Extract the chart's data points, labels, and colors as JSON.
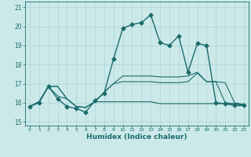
{
  "xlabel": "Humidex (Indice chaleur)",
  "ylabel": "",
  "xlim": [
    -0.5,
    23.5
  ],
  "ylim": [
    14.8,
    21.3
  ],
  "yticks": [
    15,
    16,
    17,
    18,
    19,
    20,
    21
  ],
  "xticks": [
    0,
    1,
    2,
    3,
    4,
    5,
    6,
    7,
    8,
    9,
    10,
    11,
    12,
    13,
    14,
    15,
    16,
    17,
    18,
    19,
    20,
    21,
    22,
    23
  ],
  "background_color": "#cce9e9",
  "grid_color": "#aad4d4",
  "line_color": "#1a6b6b",
  "lines": [
    {
      "x": [
        0,
        1,
        2,
        3,
        4,
        5,
        6,
        7,
        8,
        9,
        10,
        11,
        12,
        13,
        14,
        15,
        16,
        17,
        18,
        19,
        20,
        21,
        22,
        23
      ],
      "y": [
        15.8,
        16.0,
        16.85,
        16.2,
        15.8,
        15.7,
        15.5,
        16.1,
        16.5,
        18.3,
        19.9,
        20.1,
        20.2,
        20.6,
        19.15,
        19.0,
        19.5,
        17.6,
        19.1,
        19.0,
        16.0,
        15.95,
        15.85,
        15.85
      ],
      "marker": "D",
      "markersize": 2.5,
      "linewidth": 1.0
    },
    {
      "x": [
        0,
        1,
        2,
        3,
        4,
        5,
        6,
        7,
        8,
        9,
        10,
        11,
        12,
        13,
        14,
        15,
        16,
        17,
        18,
        19,
        20,
        21,
        22,
        23
      ],
      "y": [
        15.8,
        16.05,
        16.85,
        16.85,
        16.2,
        15.8,
        15.75,
        16.05,
        16.55,
        17.0,
        17.1,
        17.1,
        17.1,
        17.1,
        17.05,
        17.05,
        17.05,
        17.1,
        17.55,
        17.1,
        17.1,
        17.05,
        16.0,
        15.9
      ],
      "marker": null,
      "markersize": 0,
      "linewidth": 0.8
    },
    {
      "x": [
        0,
        1,
        2,
        3,
        4,
        5,
        6,
        7,
        8,
        9,
        10,
        11,
        12,
        13,
        14,
        15,
        16,
        17,
        18,
        19,
        20,
        21,
        22,
        23
      ],
      "y": [
        15.8,
        16.05,
        16.85,
        16.35,
        16.2,
        15.8,
        15.75,
        16.05,
        16.55,
        17.0,
        17.4,
        17.4,
        17.4,
        17.4,
        17.35,
        17.35,
        17.35,
        17.4,
        17.6,
        17.1,
        17.1,
        16.0,
        15.95,
        15.9
      ],
      "marker": null,
      "markersize": 0,
      "linewidth": 0.8
    },
    {
      "x": [
        0,
        1,
        2,
        3,
        4,
        5,
        6,
        7,
        8,
        9,
        10,
        11,
        12,
        13,
        14,
        15,
        16,
        17,
        18,
        19,
        20,
        21,
        22,
        23
      ],
      "y": [
        15.8,
        16.05,
        16.85,
        16.85,
        16.2,
        15.8,
        15.75,
        16.05,
        16.05,
        16.05,
        16.05,
        16.05,
        16.05,
        16.05,
        15.95,
        15.95,
        15.95,
        15.95,
        15.95,
        15.95,
        15.95,
        15.95,
        15.95,
        15.85
      ],
      "marker": null,
      "markersize": 0,
      "linewidth": 0.8
    }
  ]
}
